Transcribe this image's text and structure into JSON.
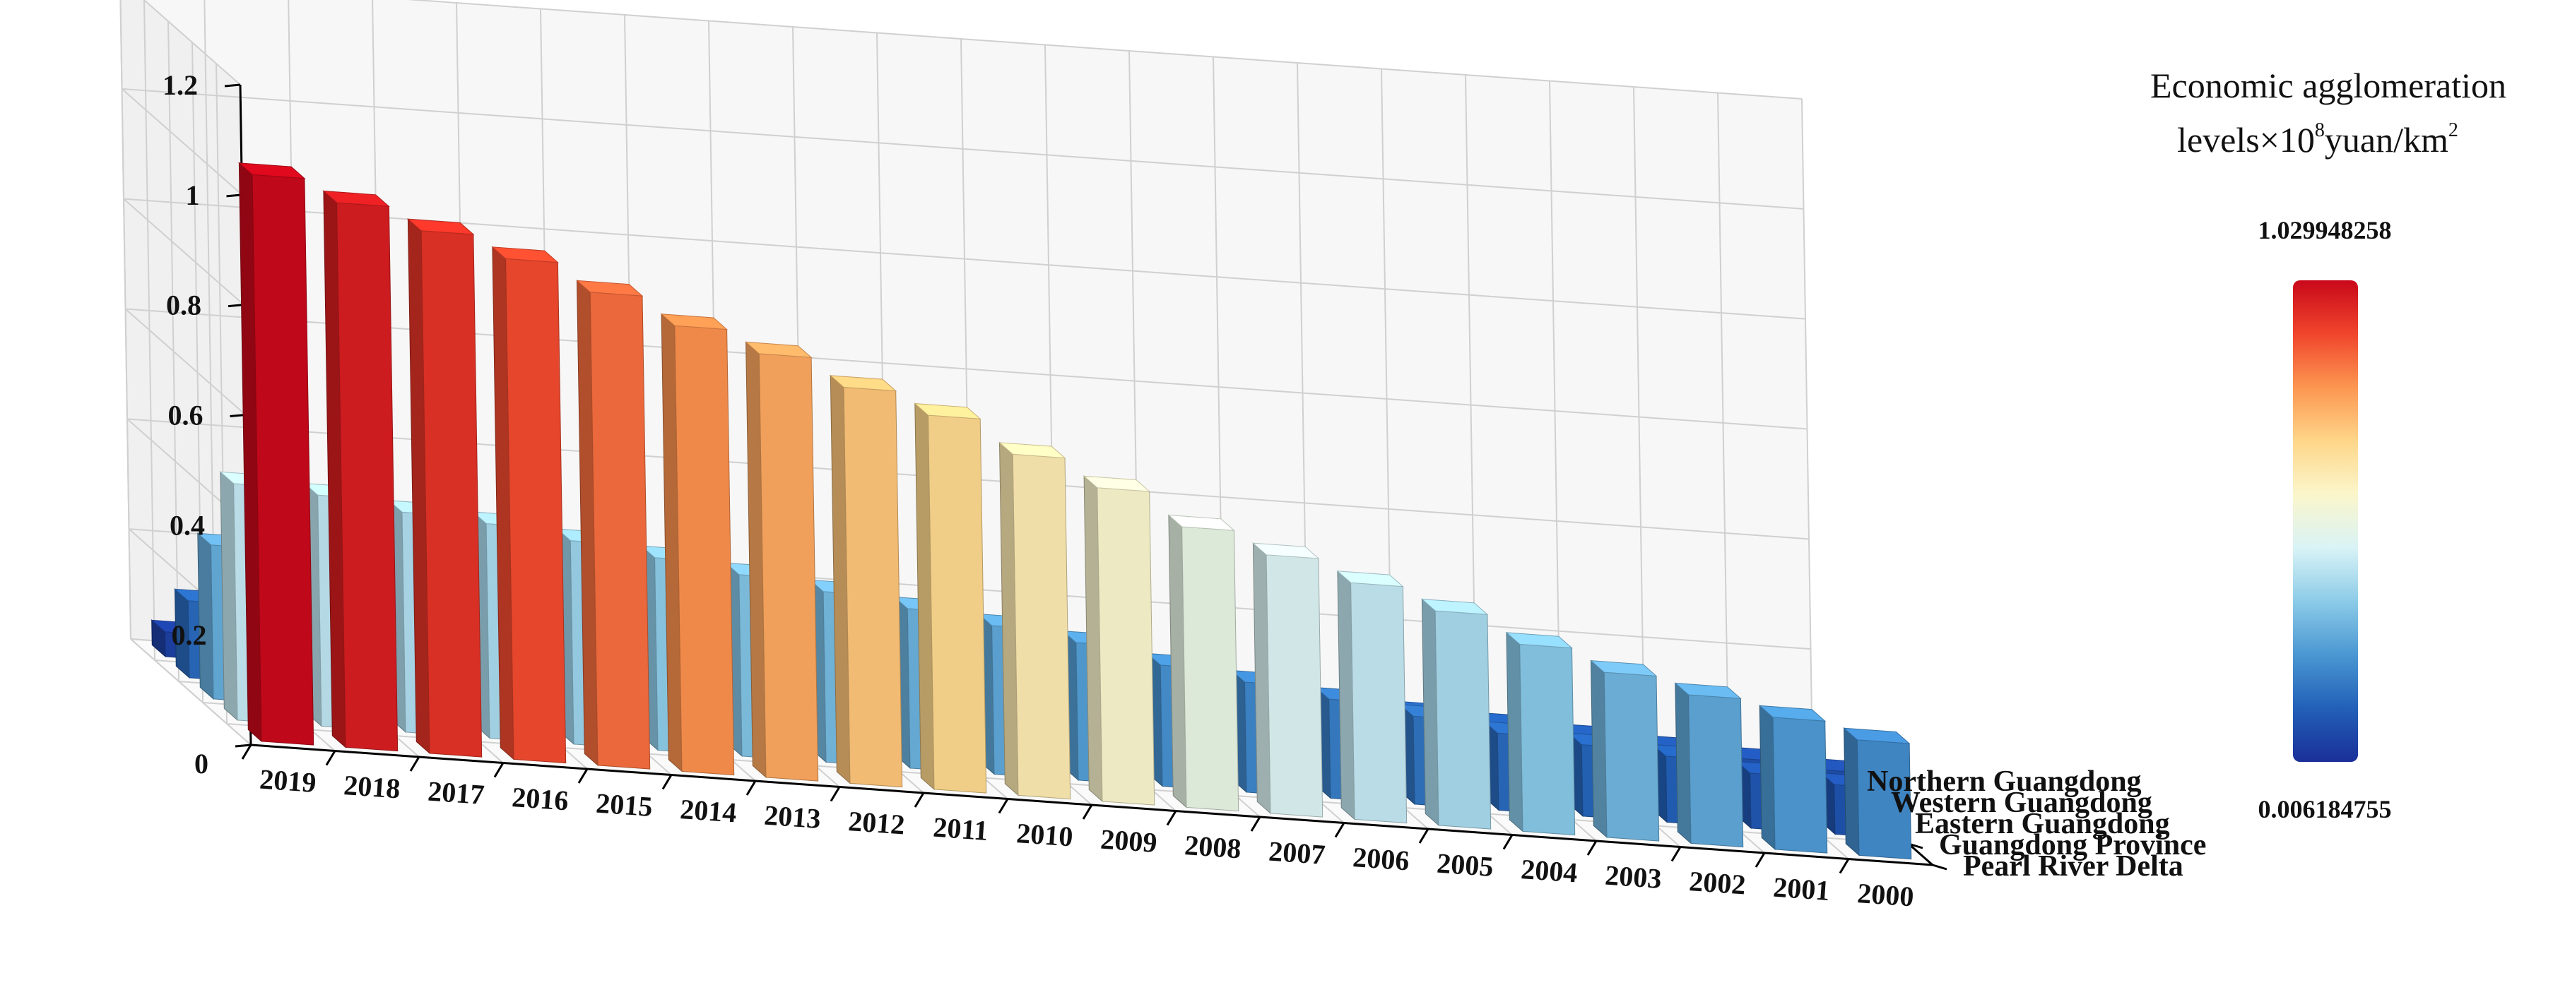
{
  "chart_data": {
    "type": "bar3d",
    "categories": [
      "2019",
      "2018",
      "2017",
      "2016",
      "2015",
      "2014",
      "2013",
      "2012",
      "2011",
      "2010",
      "2009",
      "2008",
      "2007",
      "2006",
      "2005",
      "2004",
      "2003",
      "2002",
      "2001",
      "2000"
    ],
    "series": [
      {
        "name": "Pearl River Delta",
        "values": [
          1.03,
          0.99,
          0.95,
          0.91,
          0.86,
          0.81,
          0.77,
          0.72,
          0.68,
          0.62,
          0.57,
          0.51,
          0.47,
          0.43,
          0.39,
          0.34,
          0.3,
          0.27,
          0.24,
          0.21
        ]
      },
      {
        "name": "Guangdong Province",
        "values": [
          0.43,
          0.42,
          0.4,
          0.39,
          0.37,
          0.35,
          0.33,
          0.31,
          0.29,
          0.27,
          0.25,
          0.22,
          0.2,
          0.18,
          0.16,
          0.14,
          0.13,
          0.12,
          0.1,
          0.09
        ]
      },
      {
        "name": "Eastern Guangdong",
        "values": [
          0.28,
          0.27,
          0.26,
          0.25,
          0.24,
          0.23,
          0.22,
          0.21,
          0.2,
          0.19,
          0.17,
          0.16,
          0.15,
          0.14,
          0.13,
          0.12,
          0.11,
          0.1,
          0.09,
          0.08
        ]
      },
      {
        "name": "Western Guangdong",
        "values": [
          0.14,
          0.13,
          0.13,
          0.12,
          0.12,
          0.11,
          0.1,
          0.1,
          0.09,
          0.08,
          0.08,
          0.07,
          0.07,
          0.06,
          0.06,
          0.05,
          0.05,
          0.05,
          0.04,
          0.04
        ]
      },
      {
        "name": "Northern Guangdong",
        "values": [
          0.045,
          0.043,
          0.041,
          0.039,
          0.037,
          0.035,
          0.033,
          0.031,
          0.029,
          0.027,
          0.025,
          0.023,
          0.021,
          0.019,
          0.017,
          0.015,
          0.013,
          0.011,
          0.009,
          0.0062
        ]
      }
    ],
    "z_ticks": [
      "0",
      "0.2",
      "0.4",
      "0.6",
      "0.8",
      "1",
      "1.2"
    ],
    "zlim": [
      0,
      1.2
    ],
    "colorbar": {
      "title_line1": "Economic agglomeration",
      "title_line2_prefix": "levels×10",
      "title_line2_sup": "8",
      "title_line2_unit": "yuan/km",
      "title_line2_unit_sup": "2",
      "max_label": "1.029948258",
      "min_label": "0.006184755",
      "max_value": 1.029948258,
      "min_value": 0.006184755,
      "colors": [
        "#1a2f98",
        "#2260b8",
        "#4a97d2",
        "#8ccbe8",
        "#d9f3f6",
        "#fbf6cb",
        "#fed689",
        "#fc9650",
        "#f0452c",
        "#c9081a"
      ]
    },
    "grid": true
  }
}
